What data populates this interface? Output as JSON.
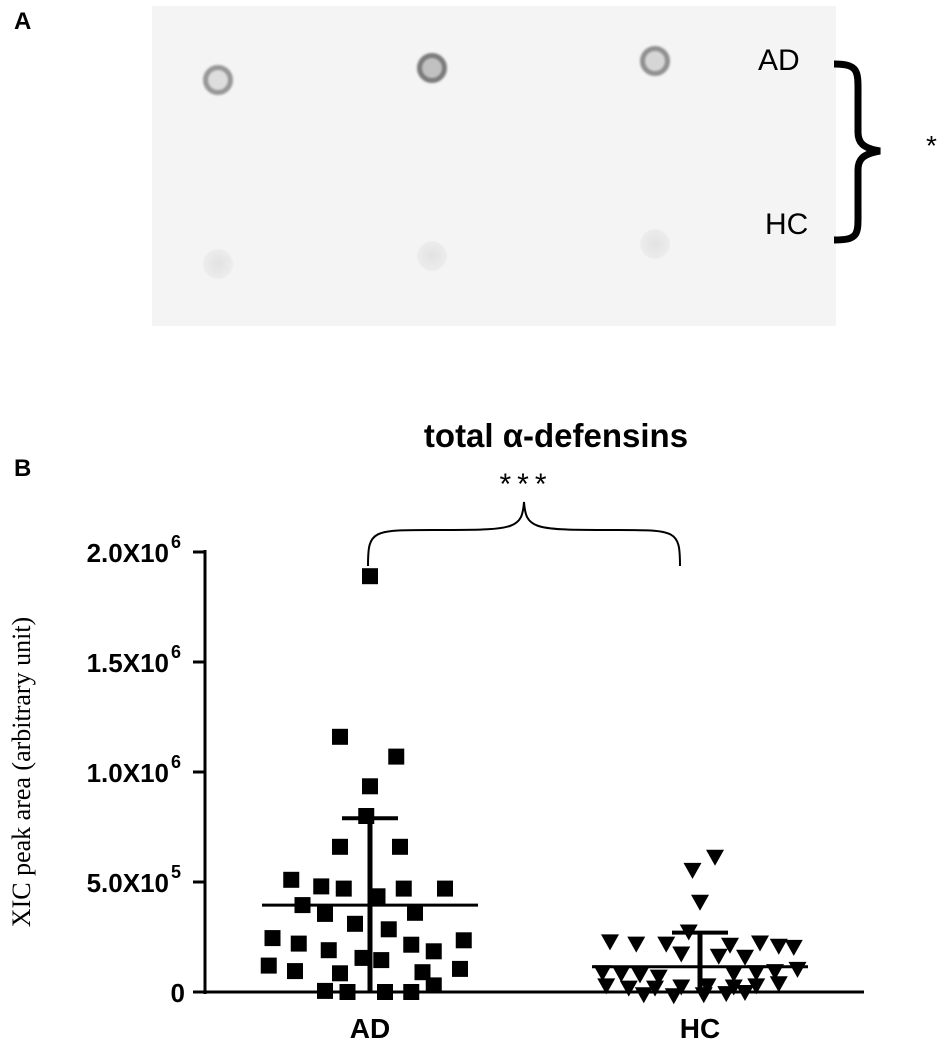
{
  "panel_a": {
    "label": "A",
    "row_labels": [
      "AD",
      "HC"
    ],
    "significance": "*",
    "spots": [
      {
        "row": "AD",
        "intensity": 0.6
      },
      {
        "row": "AD",
        "intensity": 0.8
      },
      {
        "row": "AD",
        "intensity": 0.65
      },
      {
        "row": "HC",
        "intensity": 0.08
      },
      {
        "row": "HC",
        "intensity": 0.15
      },
      {
        "row": "HC",
        "intensity": 0.12
      }
    ]
  },
  "panel_b": {
    "label": "B"
  },
  "chart_data": {
    "type": "scatter",
    "title": "total α-defensins",
    "significance": "***",
    "ylabel": "XIC peak area (arbitrary unit)",
    "xlabel": "",
    "ylim": [
      0,
      2000000
    ],
    "yticks": [
      {
        "value": 0,
        "label": "0",
        "exp": ""
      },
      {
        "value": 500000,
        "label": "5.0X10",
        "exp": "5"
      },
      {
        "value": 1000000,
        "label": "1.0X10",
        "exp": "6"
      },
      {
        "value": 1500000,
        "label": "1.5X10",
        "exp": "6"
      },
      {
        "value": 2000000,
        "label": "2.0X10",
        "exp": "6"
      }
    ],
    "categories": [
      "AD",
      "HC"
    ],
    "series": [
      {
        "category": "AD",
        "marker": "square",
        "mean": 395000,
        "error_top": 790000,
        "error_bottom": 0,
        "points": [
          {
            "offset": 0,
            "y": 1890000
          },
          {
            "offset": -0.4,
            "y": 1160000
          },
          {
            "offset": 0.35,
            "y": 1070000
          },
          {
            "offset": 0,
            "y": 935000
          },
          {
            "offset": -0.05,
            "y": 800000
          },
          {
            "offset": -0.4,
            "y": 660000
          },
          {
            "offset": 0.4,
            "y": 660000
          },
          {
            "offset": -1.05,
            "y": 510000
          },
          {
            "offset": -0.65,
            "y": 480000
          },
          {
            "offset": -0.35,
            "y": 470000
          },
          {
            "offset": 0.45,
            "y": 470000
          },
          {
            "offset": 1.0,
            "y": 470000
          },
          {
            "offset": 0.1,
            "y": 435000
          },
          {
            "offset": -0.9,
            "y": 395000
          },
          {
            "offset": -0.6,
            "y": 355000
          },
          {
            "offset": 0.6,
            "y": 360000
          },
          {
            "offset": -0.2,
            "y": 310000
          },
          {
            "offset": 0.25,
            "y": 285000
          },
          {
            "offset": -1.3,
            "y": 245000
          },
          {
            "offset": -0.95,
            "y": 220000
          },
          {
            "offset": -0.55,
            "y": 190000
          },
          {
            "offset": 0.55,
            "y": 215000
          },
          {
            "offset": 1.25,
            "y": 235000
          },
          {
            "offset": 0.85,
            "y": 185000
          },
          {
            "offset": -0.1,
            "y": 155000
          },
          {
            "offset": 0.15,
            "y": 145000
          },
          {
            "offset": -1.35,
            "y": 120000
          },
          {
            "offset": -1.0,
            "y": 95000
          },
          {
            "offset": -0.4,
            "y": 85000
          },
          {
            "offset": 0.7,
            "y": 90000
          },
          {
            "offset": 1.2,
            "y": 105000
          },
          {
            "offset": -0.6,
            "y": 5000
          },
          {
            "offset": -0.3,
            "y": 0
          },
          {
            "offset": 0.2,
            "y": 0
          },
          {
            "offset": 0.55,
            "y": 0
          },
          {
            "offset": 0.85,
            "y": 30000
          }
        ]
      },
      {
        "category": "HC",
        "marker": "triangle-down",
        "mean": 115000,
        "error_top": 270000,
        "error_bottom": 0,
        "points": [
          {
            "offset": 0.2,
            "y": 615000
          },
          {
            "offset": -0.1,
            "y": 555000
          },
          {
            "offset": 0,
            "y": 410000
          },
          {
            "offset": -0.15,
            "y": 275000
          },
          {
            "offset": -1.2,
            "y": 230000
          },
          {
            "offset": -0.85,
            "y": 220000
          },
          {
            "offset": -0.45,
            "y": 220000
          },
          {
            "offset": 0.4,
            "y": 215000
          },
          {
            "offset": 0.8,
            "y": 225000
          },
          {
            "offset": 1.05,
            "y": 210000
          },
          {
            "offset": 1.25,
            "y": 205000
          },
          {
            "offset": -0.25,
            "y": 175000
          },
          {
            "offset": 0.25,
            "y": 165000
          },
          {
            "offset": 0.6,
            "y": 160000
          },
          {
            "offset": -1.3,
            "y": 90000
          },
          {
            "offset": -1.05,
            "y": 85000
          },
          {
            "offset": -0.8,
            "y": 80000
          },
          {
            "offset": -0.55,
            "y": 70000
          },
          {
            "offset": 0.45,
            "y": 85000
          },
          {
            "offset": 0.75,
            "y": 90000
          },
          {
            "offset": 1.0,
            "y": 95000
          },
          {
            "offset": 1.3,
            "y": 105000
          },
          {
            "offset": -1.25,
            "y": 30000
          },
          {
            "offset": -0.95,
            "y": 20000
          },
          {
            "offset": -0.6,
            "y": 20000
          },
          {
            "offset": -0.25,
            "y": 25000
          },
          {
            "offset": 0.1,
            "y": 30000
          },
          {
            "offset": 0.45,
            "y": 25000
          },
          {
            "offset": 0.75,
            "y": 30000
          },
          {
            "offset": 1.05,
            "y": 40000
          },
          {
            "offset": -0.75,
            "y": -10000
          },
          {
            "offset": -0.35,
            "y": -15000
          },
          {
            "offset": 0.05,
            "y": -10000
          },
          {
            "offset": 0.35,
            "y": -5000
          },
          {
            "offset": 0.6,
            "y": 0
          }
        ]
      }
    ]
  }
}
